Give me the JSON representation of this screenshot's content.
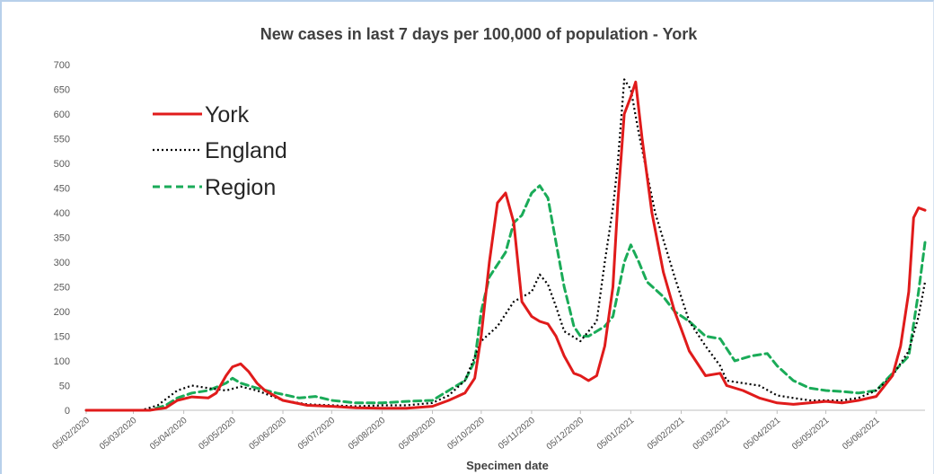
{
  "chart_data": {
    "type": "line",
    "title": "New cases in last 7 days per 100,000 of population - York",
    "xlabel": "Specimen date",
    "ylabel": "",
    "ylim": [
      0,
      700
    ],
    "y_ticks": [
      0,
      50,
      100,
      150,
      200,
      250,
      300,
      350,
      400,
      450,
      500,
      550,
      600,
      650,
      700
    ],
    "x_range": [
      "2020-02-05",
      "2021-07-05"
    ],
    "x_ticks": [
      "05/02/2020",
      "05/03/2020",
      "05/04/2020",
      "05/05/2020",
      "05/06/2020",
      "05/07/2020",
      "05/08/2020",
      "05/09/2020",
      "05/10/2020",
      "05/11/2020",
      "05/12/2020",
      "05/01/2021",
      "05/02/2021",
      "05/03/2021",
      "05/04/2021",
      "05/05/2021",
      "05/06/2021"
    ],
    "grid": false,
    "legend_position": "top-left",
    "series": [
      {
        "name": "York",
        "color": "#e01b1b",
        "style": "solid",
        "points": [
          [
            "2020-02-05",
            0
          ],
          [
            "2020-03-15",
            0
          ],
          [
            "2020-03-25",
            5
          ],
          [
            "2020-04-01",
            20
          ],
          [
            "2020-04-10",
            27
          ],
          [
            "2020-04-20",
            25
          ],
          [
            "2020-04-25",
            35
          ],
          [
            "2020-05-01",
            70
          ],
          [
            "2020-05-05",
            88
          ],
          [
            "2020-05-10",
            94
          ],
          [
            "2020-05-15",
            78
          ],
          [
            "2020-05-20",
            55
          ],
          [
            "2020-05-25",
            40
          ],
          [
            "2020-06-05",
            20
          ],
          [
            "2020-06-20",
            10
          ],
          [
            "2020-07-05",
            8
          ],
          [
            "2020-07-20",
            5
          ],
          [
            "2020-08-05",
            4
          ],
          [
            "2020-08-20",
            4
          ],
          [
            "2020-09-05",
            8
          ],
          [
            "2020-09-15",
            20
          ],
          [
            "2020-09-25",
            35
          ],
          [
            "2020-10-01",
            65
          ],
          [
            "2020-10-05",
            150
          ],
          [
            "2020-10-10",
            300
          ],
          [
            "2020-10-15",
            420
          ],
          [
            "2020-10-20",
            440
          ],
          [
            "2020-10-25",
            380
          ],
          [
            "2020-10-30",
            220
          ],
          [
            "2020-11-05",
            190
          ],
          [
            "2020-11-10",
            180
          ],
          [
            "2020-11-15",
            175
          ],
          [
            "2020-11-20",
            150
          ],
          [
            "2020-11-25",
            110
          ],
          [
            "2020-12-01",
            75
          ],
          [
            "2020-12-05",
            70
          ],
          [
            "2020-12-10",
            60
          ],
          [
            "2020-12-15",
            70
          ],
          [
            "2020-12-20",
            130
          ],
          [
            "2020-12-25",
            250
          ],
          [
            "2020-12-28",
            420
          ],
          [
            "2021-01-01",
            600
          ],
          [
            "2021-01-05",
            635
          ],
          [
            "2021-01-08",
            665
          ],
          [
            "2021-01-12",
            550
          ],
          [
            "2021-01-18",
            400
          ],
          [
            "2021-01-25",
            280
          ],
          [
            "2021-02-01",
            200
          ],
          [
            "2021-02-05",
            165
          ],
          [
            "2021-02-10",
            120
          ],
          [
            "2021-02-20",
            70
          ],
          [
            "2021-03-01",
            75
          ],
          [
            "2021-03-05",
            50
          ],
          [
            "2021-03-15",
            40
          ],
          [
            "2021-03-25",
            25
          ],
          [
            "2021-04-05",
            15
          ],
          [
            "2021-04-15",
            12
          ],
          [
            "2021-04-25",
            15
          ],
          [
            "2021-05-05",
            18
          ],
          [
            "2021-05-15",
            15
          ],
          [
            "2021-05-25",
            20
          ],
          [
            "2021-06-05",
            28
          ],
          [
            "2021-06-15",
            70
          ],
          [
            "2021-06-20",
            130
          ],
          [
            "2021-06-25",
            240
          ],
          [
            "2021-06-28",
            390
          ],
          [
            "2021-07-01",
            410
          ],
          [
            "2021-07-05",
            405
          ]
        ]
      },
      {
        "name": "England",
        "color": "#000000",
        "style": "dotted",
        "points": [
          [
            "2020-02-05",
            0
          ],
          [
            "2020-03-10",
            0
          ],
          [
            "2020-03-20",
            10
          ],
          [
            "2020-04-01",
            40
          ],
          [
            "2020-04-10",
            50
          ],
          [
            "2020-04-20",
            45
          ],
          [
            "2020-05-01",
            40
          ],
          [
            "2020-05-10",
            48
          ],
          [
            "2020-05-20",
            40
          ],
          [
            "2020-06-05",
            20
          ],
          [
            "2020-06-20",
            12
          ],
          [
            "2020-07-05",
            10
          ],
          [
            "2020-07-20",
            8
          ],
          [
            "2020-08-05",
            10
          ],
          [
            "2020-08-20",
            10
          ],
          [
            "2020-09-05",
            15
          ],
          [
            "2020-09-15",
            30
          ],
          [
            "2020-09-25",
            60
          ],
          [
            "2020-10-05",
            140
          ],
          [
            "2020-10-15",
            170
          ],
          [
            "2020-10-25",
            220
          ],
          [
            "2020-11-05",
            240
          ],
          [
            "2020-11-10",
            275
          ],
          [
            "2020-11-15",
            255
          ],
          [
            "2020-11-20",
            210
          ],
          [
            "2020-11-25",
            160
          ],
          [
            "2020-12-05",
            140
          ],
          [
            "2020-12-15",
            180
          ],
          [
            "2020-12-20",
            300
          ],
          [
            "2020-12-25",
            410
          ],
          [
            "2020-12-28",
            500
          ],
          [
            "2021-01-01",
            670
          ],
          [
            "2021-01-05",
            650
          ],
          [
            "2021-01-10",
            560
          ],
          [
            "2021-01-20",
            400
          ],
          [
            "2021-02-01",
            270
          ],
          [
            "2021-02-10",
            180
          ],
          [
            "2021-02-20",
            130
          ],
          [
            "2021-03-01",
            90
          ],
          [
            "2021-03-05",
            60
          ],
          [
            "2021-03-15",
            55
          ],
          [
            "2021-03-25",
            50
          ],
          [
            "2021-04-05",
            30
          ],
          [
            "2021-04-15",
            25
          ],
          [
            "2021-04-25",
            20
          ],
          [
            "2021-05-05",
            20
          ],
          [
            "2021-05-15",
            20
          ],
          [
            "2021-05-25",
            25
          ],
          [
            "2021-06-05",
            40
          ],
          [
            "2021-06-15",
            70
          ],
          [
            "2021-06-25",
            120
          ],
          [
            "2021-07-01",
            190
          ],
          [
            "2021-07-05",
            260
          ]
        ]
      },
      {
        "name": "Region",
        "color": "#1aab58",
        "style": "dashed",
        "points": [
          [
            "2020-02-05",
            0
          ],
          [
            "2020-03-15",
            0
          ],
          [
            "2020-03-25",
            10
          ],
          [
            "2020-04-01",
            25
          ],
          [
            "2020-04-10",
            35
          ],
          [
            "2020-04-20",
            40
          ],
          [
            "2020-05-01",
            55
          ],
          [
            "2020-05-05",
            65
          ],
          [
            "2020-05-10",
            55
          ],
          [
            "2020-05-20",
            45
          ],
          [
            "2020-06-01",
            35
          ],
          [
            "2020-06-15",
            25
          ],
          [
            "2020-06-25",
            28
          ],
          [
            "2020-07-05",
            20
          ],
          [
            "2020-07-20",
            15
          ],
          [
            "2020-08-05",
            15
          ],
          [
            "2020-08-20",
            18
          ],
          [
            "2020-09-05",
            20
          ],
          [
            "2020-09-15",
            40
          ],
          [
            "2020-09-25",
            60
          ],
          [
            "2020-10-01",
            100
          ],
          [
            "2020-10-05",
            200
          ],
          [
            "2020-10-10",
            270
          ],
          [
            "2020-10-20",
            320
          ],
          [
            "2020-10-25",
            380
          ],
          [
            "2020-10-30",
            395
          ],
          [
            "2020-11-05",
            440
          ],
          [
            "2020-11-10",
            455
          ],
          [
            "2020-11-15",
            430
          ],
          [
            "2020-11-20",
            340
          ],
          [
            "2020-11-25",
            250
          ],
          [
            "2020-12-01",
            170
          ],
          [
            "2020-12-05",
            150
          ],
          [
            "2020-12-10",
            150
          ],
          [
            "2020-12-15",
            160
          ],
          [
            "2020-12-20",
            170
          ],
          [
            "2020-12-25",
            190
          ],
          [
            "2021-01-01",
            300
          ],
          [
            "2021-01-05",
            335
          ],
          [
            "2021-01-10",
            300
          ],
          [
            "2021-01-15",
            260
          ],
          [
            "2021-01-25",
            230
          ],
          [
            "2021-02-01",
            200
          ],
          [
            "2021-02-10",
            180
          ],
          [
            "2021-02-20",
            150
          ],
          [
            "2021-03-01",
            145
          ],
          [
            "2021-03-10",
            100
          ],
          [
            "2021-03-20",
            110
          ],
          [
            "2021-03-30",
            115
          ],
          [
            "2021-04-05",
            90
          ],
          [
            "2021-04-15",
            60
          ],
          [
            "2021-04-25",
            45
          ],
          [
            "2021-05-05",
            40
          ],
          [
            "2021-05-15",
            38
          ],
          [
            "2021-05-25",
            35
          ],
          [
            "2021-06-05",
            40
          ],
          [
            "2021-06-15",
            75
          ],
          [
            "2021-06-25",
            110
          ],
          [
            "2021-07-01",
            240
          ],
          [
            "2021-07-05",
            340
          ]
        ]
      }
    ]
  }
}
